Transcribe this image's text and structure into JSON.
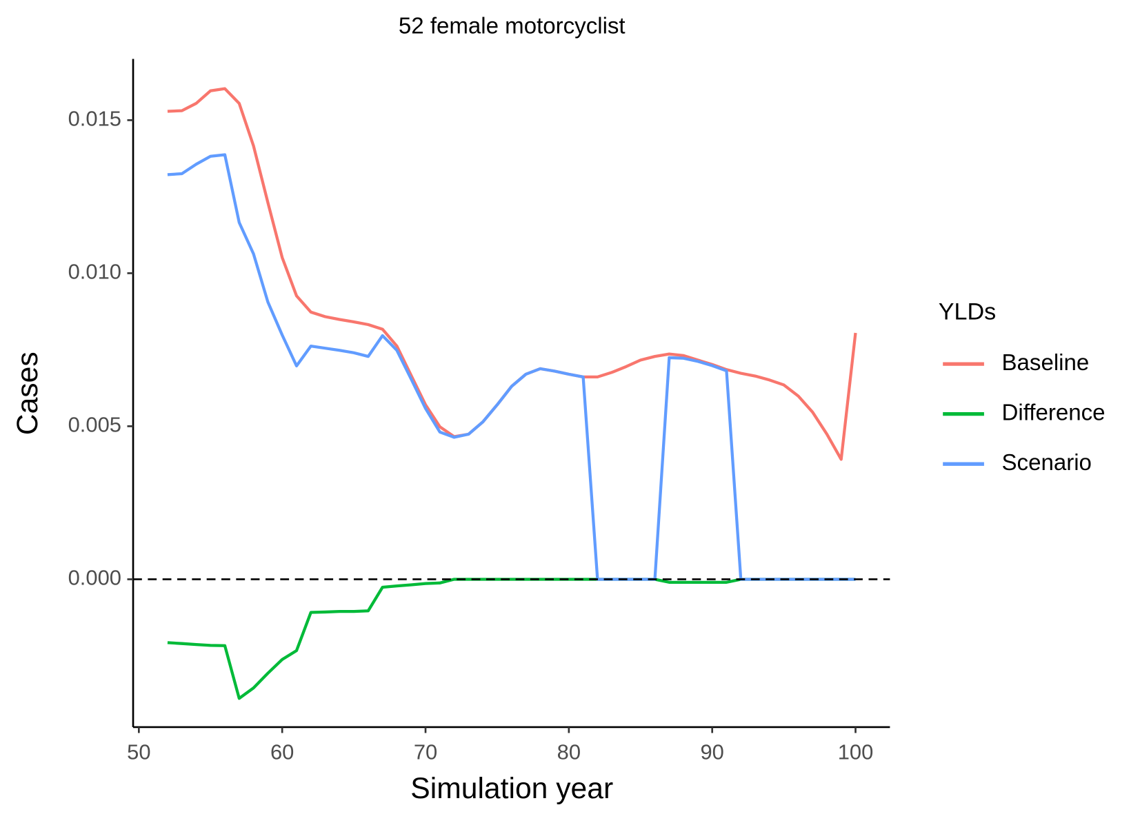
{
  "chart_data": {
    "type": "line",
    "title": "52 female motorcyclist",
    "x_label": "Simulation year",
    "y_label": "Cases",
    "legend_title": "YLDs",
    "legend_position": "right",
    "grid": false,
    "reference_line": 0,
    "x": [
      52,
      53,
      54,
      55,
      56,
      57,
      58,
      59,
      60,
      61,
      62,
      63,
      64,
      65,
      66,
      67,
      68,
      69,
      70,
      71,
      72,
      73,
      74,
      75,
      76,
      77,
      78,
      79,
      80,
      81,
      82,
      83,
      84,
      85,
      86,
      87,
      88,
      89,
      90,
      91,
      92,
      93,
      94,
      95,
      96,
      97,
      98,
      99,
      100
    ],
    "series": [
      {
        "name": "Baseline",
        "color": "#f8766d",
        "values": [
          0.01529,
          0.01531,
          0.01555,
          0.01596,
          0.01603,
          0.01555,
          0.01416,
          0.01231,
          0.01051,
          0.00926,
          0.00873,
          0.00858,
          0.00849,
          0.00841,
          0.00832,
          0.00817,
          0.00762,
          0.00666,
          0.0057,
          0.00498,
          0.00466,
          0.00474,
          0.00514,
          0.0057,
          0.0063,
          0.0067,
          0.00688,
          0.0068,
          0.0067,
          0.00661,
          0.00661,
          0.00676,
          0.00695,
          0.00716,
          0.00728,
          0.00736,
          0.00731,
          0.00716,
          0.00702,
          0.00685,
          0.00673,
          0.00664,
          0.00651,
          0.00635,
          0.00599,
          0.00546,
          0.00474,
          0.00392,
          0.00805
        ]
      },
      {
        "name": "Difference",
        "color": "#00ba38",
        "values": [
          -0.00207,
          -0.0021,
          -0.00213,
          -0.00216,
          -0.00217,
          -0.00389,
          -0.00355,
          -0.00307,
          -0.00262,
          -0.00233,
          -0.00108,
          -0.00107,
          -0.00105,
          -0.00105,
          -0.00103,
          -0.00026,
          -0.00022,
          -0.00018,
          -0.00014,
          -0.00012,
          0,
          0,
          0,
          0,
          0,
          0,
          0,
          0,
          0,
          0,
          0,
          0,
          0,
          0,
          0,
          -0.0001,
          -0.0001,
          -0.0001,
          -0.0001,
          -0.0001,
          0,
          0,
          0,
          0,
          0,
          0,
          0,
          0,
          0
        ]
      },
      {
        "name": "Scenario",
        "color": "#619cff",
        "values": [
          0.01322,
          0.01325,
          0.01356,
          0.01382,
          0.01387,
          0.01166,
          0.01063,
          0.00906,
          0.00798,
          0.00697,
          0.00762,
          0.00755,
          0.00748,
          0.0074,
          0.00728,
          0.00796,
          0.00748,
          0.00654,
          0.00558,
          0.00481,
          0.00464,
          0.00474,
          0.00514,
          0.0057,
          0.0063,
          0.0067,
          0.00688,
          0.0068,
          0.0067,
          0.00661,
          0,
          0,
          0,
          0,
          0,
          0.00724,
          0.00722,
          0.00712,
          0.00698,
          0.00681,
          0,
          0,
          0,
          0,
          0,
          0,
          0,
          0,
          0
        ]
      }
    ],
    "xlim": [
      49.6,
      102.4
    ],
    "xticks": [
      50,
      60,
      70,
      80,
      90,
      100
    ],
    "ylim": [
      -0.00483,
      0.017
    ],
    "yticks": [
      {
        "value": 0,
        "label": "0.000"
      },
      0.005,
      {
        "value": 0.01,
        "label": "0.010"
      },
      0.015
    ]
  }
}
